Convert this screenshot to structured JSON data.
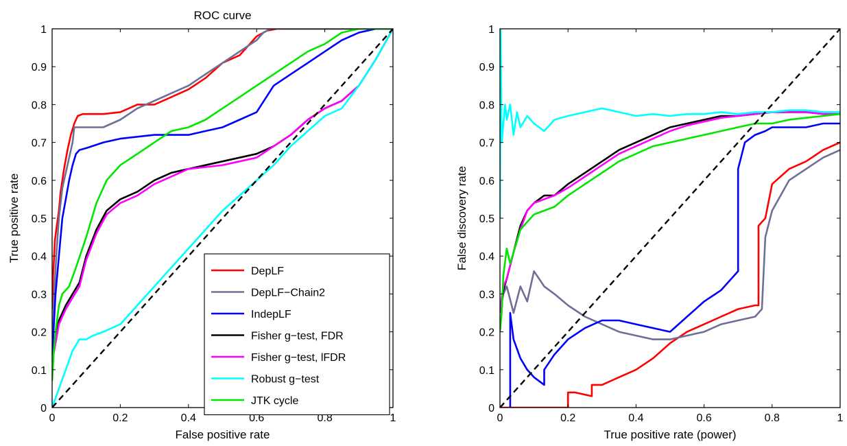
{
  "colors": {
    "DepLF": "#ff0000",
    "DepLF-Chain2": "#6e6e96",
    "IndepLF": "#0000ff",
    "Fisher g-test, FDR": "#000000",
    "Fisher g-test, lFDR": "#ff00ff",
    "Robust g-test": "#00ffff",
    "JTK cycle": "#00e600",
    "diagonal": "#000000"
  },
  "chart_data": [
    {
      "type": "line",
      "title": "ROC curve",
      "xlabel": "False positive rate",
      "ylabel": "True positive rate",
      "xlim": [
        0,
        1
      ],
      "ylim": [
        0,
        1
      ],
      "xticks": [
        "0",
        "0.2",
        "0.4",
        "0.6",
        "0.8",
        "1"
      ],
      "yticks": [
        "0",
        "0.1",
        "0.2",
        "0.3",
        "0.4",
        "0.5",
        "0.6",
        "0.7",
        "0.8",
        "0.9",
        "1"
      ],
      "legend": {
        "position": "bottom-right",
        "entries": [
          "DepLF",
          "DepLF−Chain2",
          "IndepLF",
          "Fisher g−test, FDR",
          "Fisher g−test, lFDR",
          "Robust g−test",
          "JTK cycle"
        ]
      },
      "series": [
        {
          "key": "DepLF",
          "x": [
            0,
            0.003,
            0.008,
            0.012,
            0.02,
            0.025,
            0.035,
            0.045,
            0.055,
            0.065,
            0.075,
            0.09,
            0.15,
            0.2,
            0.25,
            0.3,
            0.35,
            0.4,
            0.45,
            0.5,
            0.55,
            0.6,
            0.63,
            0.66,
            1
          ],
          "y": [
            0.26,
            0.35,
            0.44,
            0.47,
            0.52,
            0.57,
            0.63,
            0.68,
            0.72,
            0.75,
            0.77,
            0.775,
            0.775,
            0.78,
            0.8,
            0.8,
            0.82,
            0.84,
            0.87,
            0.91,
            0.93,
            0.98,
            0.995,
            1,
            1
          ]
        },
        {
          "key": "DepLF-Chain2",
          "x": [
            0,
            0.005,
            0.012,
            0.02,
            0.03,
            0.045,
            0.06,
            0.065,
            0.1,
            0.15,
            0.2,
            0.25,
            0.3,
            0.35,
            0.4,
            0.45,
            0.5,
            0.55,
            0.6,
            0.62,
            0.64,
            0.66,
            1
          ],
          "y": [
            0.1,
            0.28,
            0.4,
            0.5,
            0.58,
            0.64,
            0.7,
            0.74,
            0.74,
            0.74,
            0.76,
            0.79,
            0.81,
            0.83,
            0.85,
            0.88,
            0.91,
            0.94,
            0.97,
            0.99,
            1,
            1,
            1
          ]
        },
        {
          "key": "IndepLF",
          "x": [
            0,
            0.004,
            0.01,
            0.02,
            0.03,
            0.04,
            0.05,
            0.06,
            0.07,
            0.08,
            0.1,
            0.15,
            0.2,
            0.3,
            0.4,
            0.45,
            0.5,
            0.55,
            0.6,
            0.65,
            0.7,
            0.75,
            0.8,
            0.85,
            0.9,
            0.95,
            1
          ],
          "y": [
            0.1,
            0.2,
            0.3,
            0.4,
            0.5,
            0.55,
            0.6,
            0.64,
            0.67,
            0.68,
            0.685,
            0.7,
            0.71,
            0.72,
            0.72,
            0.73,
            0.74,
            0.76,
            0.78,
            0.85,
            0.88,
            0.91,
            0.94,
            0.97,
            0.99,
            1,
            1
          ]
        },
        {
          "key": "Fisher g-test, FDR",
          "x": [
            0,
            0.01,
            0.02,
            0.04,
            0.06,
            0.08,
            0.1,
            0.13,
            0.16,
            0.2,
            0.25,
            0.3,
            0.35,
            0.4,
            0.45,
            0.5,
            0.55,
            0.6,
            0.65,
            0.7,
            0.75,
            0.8,
            0.85,
            0.9,
            0.95,
            1
          ],
          "y": [
            0.12,
            0.18,
            0.23,
            0.27,
            0.3,
            0.33,
            0.4,
            0.47,
            0.52,
            0.55,
            0.57,
            0.6,
            0.62,
            0.63,
            0.64,
            0.65,
            0.66,
            0.67,
            0.69,
            0.72,
            0.76,
            0.79,
            0.81,
            0.85,
            0.92,
            1
          ]
        },
        {
          "key": "Fisher g-test, lFDR",
          "x": [
            0,
            0.01,
            0.02,
            0.04,
            0.06,
            0.08,
            0.1,
            0.13,
            0.16,
            0.2,
            0.25,
            0.3,
            0.35,
            0.4,
            0.45,
            0.5,
            0.55,
            0.6,
            0.65,
            0.7,
            0.75,
            0.8,
            0.85,
            0.9,
            0.95,
            1
          ],
          "y": [
            0.12,
            0.17,
            0.22,
            0.26,
            0.29,
            0.32,
            0.39,
            0.46,
            0.51,
            0.54,
            0.56,
            0.59,
            0.61,
            0.63,
            0.635,
            0.64,
            0.65,
            0.66,
            0.69,
            0.72,
            0.76,
            0.79,
            0.81,
            0.85,
            0.92,
            1
          ]
        },
        {
          "key": "Robust g-test",
          "x": [
            0,
            0.02,
            0.04,
            0.06,
            0.08,
            0.1,
            0.12,
            0.15,
            0.2,
            0.25,
            0.3,
            0.35,
            0.4,
            0.45,
            0.5,
            0.55,
            0.6,
            0.65,
            0.7,
            0.75,
            0.8,
            0.85,
            0.9,
            0.95,
            1
          ],
          "y": [
            0,
            0.05,
            0.1,
            0.15,
            0.18,
            0.18,
            0.19,
            0.2,
            0.22,
            0.27,
            0.32,
            0.37,
            0.42,
            0.47,
            0.52,
            0.56,
            0.6,
            0.64,
            0.69,
            0.73,
            0.77,
            0.79,
            0.85,
            0.92,
            1
          ]
        },
        {
          "key": "JTK cycle",
          "x": [
            0,
            0.005,
            0.01,
            0.02,
            0.03,
            0.05,
            0.07,
            0.1,
            0.13,
            0.16,
            0.2,
            0.25,
            0.3,
            0.35,
            0.4,
            0.45,
            0.5,
            0.55,
            0.6,
            0.65,
            0.7,
            0.75,
            0.8,
            0.85,
            0.9,
            0.95,
            1
          ],
          "y": [
            0.07,
            0.15,
            0.2,
            0.27,
            0.3,
            0.32,
            0.37,
            0.45,
            0.54,
            0.6,
            0.64,
            0.67,
            0.7,
            0.73,
            0.74,
            0.76,
            0.79,
            0.82,
            0.85,
            0.88,
            0.91,
            0.94,
            0.96,
            0.99,
            1,
            1,
            1
          ]
        },
        {
          "key": "diagonal",
          "dashed": true,
          "x": [
            0,
            1
          ],
          "y": [
            0,
            1
          ]
        }
      ]
    },
    {
      "type": "line",
      "title": "",
      "xlabel": "True positive rate (power)",
      "ylabel": "False discovery rate",
      "xlim": [
        0,
        1
      ],
      "ylim": [
        0,
        1
      ],
      "xticks": [
        "0",
        "0.2",
        "0.4",
        "0.6",
        "0.8",
        "1"
      ],
      "yticks": [
        "0",
        "0.1",
        "0.2",
        "0.3",
        "0.4",
        "0.5",
        "0.6",
        "0.7",
        "0.8",
        "0.9",
        "1"
      ],
      "series": [
        {
          "key": "DepLF",
          "x": [
            0,
            0.2,
            0.2,
            0.22,
            0.27,
            0.27,
            0.3,
            0.35,
            0.4,
            0.45,
            0.5,
            0.55,
            0.6,
            0.65,
            0.7,
            0.75,
            0.76,
            0.76,
            0.78,
            0.8,
            0.85,
            0.9,
            0.95,
            1
          ],
          "y": [
            0,
            0,
            0.04,
            0.04,
            0.03,
            0.06,
            0.06,
            0.08,
            0.1,
            0.13,
            0.17,
            0.2,
            0.22,
            0.24,
            0.26,
            0.27,
            0.27,
            0.48,
            0.5,
            0.59,
            0.63,
            0.65,
            0.68,
            0.7
          ]
        },
        {
          "key": "DepLF-Chain2",
          "x": [
            0,
            0.01,
            0.02,
            0.04,
            0.06,
            0.08,
            0.1,
            0.13,
            0.16,
            0.2,
            0.25,
            0.3,
            0.35,
            0.4,
            0.45,
            0.5,
            0.55,
            0.6,
            0.65,
            0.7,
            0.75,
            0.77,
            0.78,
            0.8,
            0.85,
            0.9,
            0.95,
            1
          ],
          "y": [
            0.25,
            0.3,
            0.32,
            0.25,
            0.32,
            0.28,
            0.36,
            0.32,
            0.3,
            0.27,
            0.24,
            0.22,
            0.2,
            0.19,
            0.18,
            0.18,
            0.19,
            0.2,
            0.22,
            0.23,
            0.24,
            0.26,
            0.45,
            0.52,
            0.6,
            0.63,
            0.66,
            0.68
          ]
        },
        {
          "key": "IndepLF",
          "x": [
            0.03,
            0.03,
            0.04,
            0.06,
            0.08,
            0.1,
            0.13,
            0.13,
            0.16,
            0.2,
            0.25,
            0.3,
            0.35,
            0.4,
            0.45,
            0.5,
            0.55,
            0.6,
            0.65,
            0.7,
            0.7,
            0.72,
            0.75,
            0.78,
            0.8,
            0.85,
            0.9,
            0.95,
            1
          ],
          "y": [
            0,
            0.25,
            0.18,
            0.13,
            0.1,
            0.08,
            0.06,
            0.1,
            0.14,
            0.18,
            0.21,
            0.23,
            0.23,
            0.22,
            0.21,
            0.2,
            0.24,
            0.28,
            0.31,
            0.36,
            0.63,
            0.7,
            0.72,
            0.73,
            0.74,
            0.74,
            0.74,
            0.75,
            0.75
          ]
        },
        {
          "key": "Fisher g-test, FDR",
          "x": [
            0,
            0.005,
            0.01,
            0.02,
            0.04,
            0.06,
            0.08,
            0.1,
            0.13,
            0.16,
            0.2,
            0.25,
            0.3,
            0.35,
            0.4,
            0.45,
            0.5,
            0.55,
            0.6,
            0.65,
            0.7,
            0.75,
            0.8,
            0.85,
            0.9,
            0.95,
            1
          ],
          "y": [
            0.25,
            0.28,
            0.31,
            0.34,
            0.41,
            0.48,
            0.52,
            0.54,
            0.56,
            0.56,
            0.59,
            0.62,
            0.65,
            0.68,
            0.7,
            0.72,
            0.74,
            0.75,
            0.76,
            0.77,
            0.77,
            0.775,
            0.78,
            0.78,
            0.78,
            0.775,
            0.775
          ]
        },
        {
          "key": "Fisher g-test, lFDR",
          "x": [
            0,
            0.005,
            0.01,
            0.02,
            0.04,
            0.06,
            0.08,
            0.1,
            0.13,
            0.16,
            0.2,
            0.25,
            0.3,
            0.35,
            0.4,
            0.45,
            0.5,
            0.55,
            0.6,
            0.65,
            0.7,
            0.75,
            0.8,
            0.85,
            0.9,
            0.95,
            1
          ],
          "y": [
            0.25,
            0.29,
            0.32,
            0.34,
            0.41,
            0.47,
            0.52,
            0.54,
            0.55,
            0.56,
            0.58,
            0.61,
            0.64,
            0.67,
            0.69,
            0.71,
            0.73,
            0.745,
            0.755,
            0.765,
            0.77,
            0.775,
            0.78,
            0.78,
            0.78,
            0.775,
            0.775
          ]
        },
        {
          "key": "Robust g-test",
          "x": [
            0,
            0.002,
            0.005,
            0.01,
            0.015,
            0.02,
            0.03,
            0.04,
            0.05,
            0.06,
            0.08,
            0.1,
            0.13,
            0.16,
            0.2,
            0.25,
            0.3,
            0.35,
            0.4,
            0.45,
            0.5,
            0.55,
            0.6,
            0.65,
            0.7,
            0.75,
            0.8,
            0.85,
            0.9,
            0.95,
            1
          ],
          "y": [
            0.5,
            1,
            0.7,
            0.75,
            0.8,
            0.76,
            0.8,
            0.72,
            0.78,
            0.74,
            0.77,
            0.75,
            0.73,
            0.76,
            0.77,
            0.78,
            0.79,
            0.78,
            0.77,
            0.775,
            0.77,
            0.775,
            0.775,
            0.78,
            0.775,
            0.78,
            0.78,
            0.785,
            0.785,
            0.78,
            0.78
          ]
        },
        {
          "key": "JTK cycle",
          "x": [
            0,
            0.005,
            0.01,
            0.02,
            0.03,
            0.04,
            0.06,
            0.08,
            0.1,
            0.13,
            0.16,
            0.2,
            0.25,
            0.3,
            0.35,
            0.4,
            0.45,
            0.5,
            0.55,
            0.6,
            0.65,
            0.7,
            0.75,
            0.8,
            0.85,
            0.9,
            0.95,
            1
          ],
          "y": [
            0.2,
            0.25,
            0.35,
            0.42,
            0.38,
            0.41,
            0.47,
            0.49,
            0.51,
            0.52,
            0.53,
            0.56,
            0.59,
            0.62,
            0.65,
            0.67,
            0.69,
            0.7,
            0.71,
            0.72,
            0.73,
            0.74,
            0.75,
            0.75,
            0.76,
            0.765,
            0.77,
            0.775
          ]
        },
        {
          "key": "diagonal",
          "dashed": true,
          "x": [
            0,
            1
          ],
          "y": [
            0,
            1
          ]
        }
      ]
    }
  ]
}
